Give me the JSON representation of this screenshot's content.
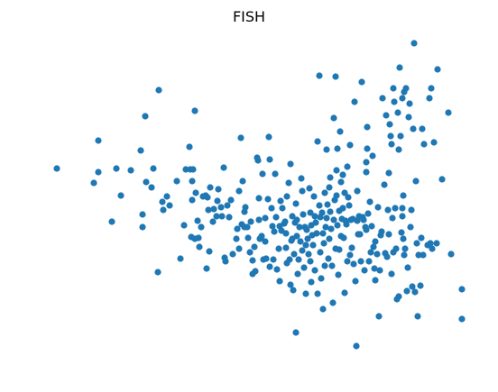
{
  "chart_data": {
    "type": "scatter",
    "title": "FISH",
    "xlabel": "",
    "ylabel": "",
    "grid": false,
    "axes_visible": false,
    "marker_color": "#1f77b4",
    "points": [
      [
        63,
        187
      ],
      [
        104,
        203
      ],
      [
        109,
        156
      ],
      [
        109,
        191
      ],
      [
        124,
        246
      ],
      [
        129,
        187
      ],
      [
        134,
        217
      ],
      [
        145,
        189
      ],
      [
        156,
        167
      ],
      [
        158,
        238
      ],
      [
        158,
        252
      ],
      [
        161,
        129
      ],
      [
        162,
        202
      ],
      [
        170,
        187
      ],
      [
        168,
        208
      ],
      [
        175,
        302
      ],
      [
        176,
        100
      ],
      [
        180,
        224
      ],
      [
        181,
        233
      ],
      [
        185,
        218
      ],
      [
        188,
        228
      ],
      [
        196,
        201
      ],
      [
        200,
        287
      ],
      [
        204,
        250
      ],
      [
        206,
        188
      ],
      [
        210,
        163
      ],
      [
        211,
        188
      ],
      [
        214,
        188
      ],
      [
        213,
        201
      ],
      [
        216,
        123
      ],
      [
        213,
        222
      ],
      [
        217,
        214
      ],
      [
        212,
        263
      ],
      [
        216,
        265
      ],
      [
        219,
        245
      ],
      [
        220,
        264
      ],
      [
        221,
        274
      ],
      [
        223,
        252
      ],
      [
        225,
        218
      ],
      [
        228,
        217
      ],
      [
        230,
        219
      ],
      [
        231,
        233
      ],
      [
        229,
        298
      ],
      [
        232,
        279
      ],
      [
        233,
        208
      ],
      [
        236,
        246
      ],
      [
        237,
        232
      ],
      [
        240,
        240
      ],
      [
        241,
        223
      ],
      [
        242,
        210
      ],
      [
        245,
        230
      ],
      [
        246,
        240
      ],
      [
        248,
        186
      ],
      [
        249,
        286
      ],
      [
        250,
        290
      ],
      [
        252,
        228
      ],
      [
        254,
        241
      ],
      [
        256,
        222
      ],
      [
        258,
        282
      ],
      [
        262,
        265
      ],
      [
        263,
        254
      ],
      [
        265,
        276
      ],
      [
        265,
        212
      ],
      [
        267,
        153
      ],
      [
        268,
        249
      ],
      [
        269,
        201
      ],
      [
        271,
        235
      ],
      [
        271,
        252
      ],
      [
        272,
        230
      ],
      [
        274,
        252
      ],
      [
        275,
        264
      ],
      [
        277,
        280
      ],
      [
        278,
        246
      ],
      [
        280,
        289
      ],
      [
        280,
        304
      ],
      [
        282,
        274
      ],
      [
        283,
        301
      ],
      [
        285,
        175
      ],
      [
        286,
        178
      ],
      [
        287,
        220
      ],
      [
        287,
        244
      ],
      [
        288,
        265
      ],
      [
        289,
        264
      ],
      [
        290,
        262
      ],
      [
        291,
        193
      ],
      [
        292,
        288
      ],
      [
        294,
        242
      ],
      [
        294,
        268
      ],
      [
        295,
        287
      ],
      [
        297,
        221
      ],
      [
        298,
        152
      ],
      [
        299,
        177
      ],
      [
        299,
        296
      ],
      [
        301,
        231
      ],
      [
        302,
        251
      ],
      [
        303,
        288
      ],
      [
        304,
        257
      ],
      [
        305,
        193
      ],
      [
        306,
        241
      ],
      [
        307,
        299
      ],
      [
        309,
        276
      ],
      [
        310,
        251
      ],
      [
        310,
        312
      ],
      [
        311,
        223
      ],
      [
        312,
        256
      ],
      [
        313,
        231
      ],
      [
        315,
        248
      ],
      [
        316,
        246
      ],
      [
        317,
        259
      ],
      [
        317,
        275
      ],
      [
        318,
        292
      ],
      [
        318,
        218
      ],
      [
        320,
        203
      ],
      [
        321,
        288
      ],
      [
        322,
        182
      ],
      [
        322,
        316
      ],
      [
        323,
        267
      ],
      [
        324,
        240
      ],
      [
        324,
        265
      ],
      [
        325,
        322
      ],
      [
        326,
        282
      ],
      [
        327,
        247
      ],
      [
        328,
        369
      ],
      [
        328,
        226
      ],
      [
        329,
        244
      ],
      [
        329,
        262
      ],
      [
        330,
        304
      ],
      [
        331,
        288
      ],
      [
        332,
        252
      ],
      [
        333,
        268
      ],
      [
        334,
        198
      ],
      [
        335,
        212
      ],
      [
        335,
        278
      ],
      [
        336,
        238
      ],
      [
        337,
        297
      ],
      [
        338,
        252
      ],
      [
        339,
        272
      ],
      [
        339,
        326
      ],
      [
        340,
        255
      ],
      [
        341,
        265
      ],
      [
        342,
        282
      ],
      [
        343,
        209
      ],
      [
        344,
        236
      ],
      [
        344,
        290
      ],
      [
        345,
        250
      ],
      [
        345,
        313
      ],
      [
        346,
        261
      ],
      [
        347,
        272
      ],
      [
        348,
        218
      ],
      [
        349,
        240
      ],
      [
        349,
        300
      ],
      [
        350,
        247
      ],
      [
        351,
        259
      ],
      [
        352,
        157
      ],
      [
        352,
        326
      ],
      [
        354,
        84
      ],
      [
        354,
        228
      ],
      [
        355,
        241
      ],
      [
        355,
        280
      ],
      [
        356,
        309
      ],
      [
        357,
        236
      ],
      [
        358,
        259
      ],
      [
        358,
        343
      ],
      [
        359,
        270
      ],
      [
        360,
        214
      ],
      [
        360,
        295
      ],
      [
        361,
        252
      ],
      [
        362,
        166
      ],
      [
        362,
        242
      ],
      [
        363,
        227
      ],
      [
        364,
        287
      ],
      [
        365,
        208
      ],
      [
        365,
        265
      ],
      [
        366,
        197
      ],
      [
        366,
        235
      ],
      [
        367,
        254
      ],
      [
        368,
        295
      ],
      [
        369,
        336
      ],
      [
        370,
        131
      ],
      [
        370,
        244
      ],
      [
        371,
        222
      ],
      [
        372,
        85
      ],
      [
        372,
        276
      ],
      [
        373,
        189
      ],
      [
        373,
        217
      ],
      [
        374,
        165
      ],
      [
        374,
        250
      ],
      [
        375,
        305
      ],
      [
        376,
        234
      ],
      [
        376,
        277
      ],
      [
        377,
        146
      ],
      [
        378,
        262
      ],
      [
        378,
        202
      ],
      [
        379,
        243
      ],
      [
        380,
        194
      ],
      [
        380,
        231
      ],
      [
        381,
        264
      ],
      [
        382,
        214
      ],
      [
        382,
        325
      ],
      [
        383,
        245
      ],
      [
        384,
        249
      ],
      [
        385,
        185
      ],
      [
        385,
        290
      ],
      [
        386,
        219
      ],
      [
        387,
        228
      ],
      [
        388,
        161
      ],
      [
        388,
        283
      ],
      [
        389,
        244
      ],
      [
        390,
        275
      ],
      [
        391,
        243
      ],
      [
        392,
        293
      ],
      [
        393,
        113
      ],
      [
        394,
        312
      ],
      [
        395,
        384
      ],
      [
        396,
        245
      ],
      [
        396,
        212
      ],
      [
        397,
        260
      ],
      [
        398,
        240
      ],
      [
        399,
        260
      ],
      [
        400,
        290
      ],
      [
        401,
        91
      ],
      [
        402,
        241
      ],
      [
        403,
        244
      ],
      [
        404,
        300
      ],
      [
        405,
        252
      ],
      [
        406,
        191
      ],
      [
        406,
        180
      ],
      [
        406,
        255
      ],
      [
        407,
        165
      ],
      [
        407,
        141
      ],
      [
        408,
        237
      ],
      [
        409,
        290
      ],
      [
        410,
        224
      ],
      [
        411,
        280
      ],
      [
        412,
        251
      ],
      [
        413,
        173
      ],
      [
        414,
        274
      ],
      [
        415,
        298
      ],
      [
        416,
        311
      ],
      [
        416,
        268
      ],
      [
        418,
        282
      ],
      [
        419,
        230
      ],
      [
        420,
        351
      ],
      [
        421,
        300
      ],
      [
        422,
        261
      ],
      [
        423,
        257
      ],
      [
        424,
        109
      ],
      [
        426,
        205
      ],
      [
        427,
        281
      ],
      [
        428,
        128
      ],
      [
        429,
        285
      ],
      [
        430,
        233
      ],
      [
        431,
        192
      ],
      [
        431,
        260
      ],
      [
        432,
        138
      ],
      [
        433,
        151
      ],
      [
        434,
        304
      ],
      [
        434,
        160
      ],
      [
        435,
        242
      ],
      [
        436,
        98
      ],
      [
        436,
        280
      ],
      [
        437,
        113
      ],
      [
        438,
        231
      ],
      [
        439,
        276
      ],
      [
        440,
        332
      ],
      [
        441,
        125
      ],
      [
        442,
        166
      ],
      [
        442,
        329
      ],
      [
        443,
        75
      ],
      [
        444,
        151
      ],
      [
        445,
        258
      ],
      [
        446,
        109
      ],
      [
        446,
        231
      ],
      [
        446,
        240
      ],
      [
        447,
        217
      ],
      [
        447,
        265
      ],
      [
        448,
        102
      ],
      [
        448,
        283
      ],
      [
        449,
        276
      ],
      [
        450,
        98
      ],
      [
        451,
        323
      ],
      [
        452,
        297
      ],
      [
        453,
        130
      ],
      [
        454,
        115
      ],
      [
        455,
        252
      ],
      [
        456,
        233
      ],
      [
        457,
        318
      ],
      [
        458,
        143
      ],
      [
        459,
        48
      ],
      [
        460,
        324
      ],
      [
        461,
        201
      ],
      [
        462,
        270
      ],
      [
        463,
        351
      ],
      [
        464,
        283
      ],
      [
        466,
        317
      ],
      [
        467,
        264
      ],
      [
        468,
        143
      ],
      [
        469,
        283
      ],
      [
        470,
        160
      ],
      [
        474,
        272
      ],
      [
        476,
        109
      ],
      [
        477,
        270
      ],
      [
        478,
        98
      ],
      [
        479,
        276
      ],
      [
        481,
        158
      ],
      [
        484,
        270
      ],
      [
        485,
        77
      ],
      [
        490,
        199
      ],
      [
        497,
        125
      ],
      [
        500,
        282
      ],
      [
        512,
        321
      ],
      [
        512,
        354
      ]
    ]
  }
}
